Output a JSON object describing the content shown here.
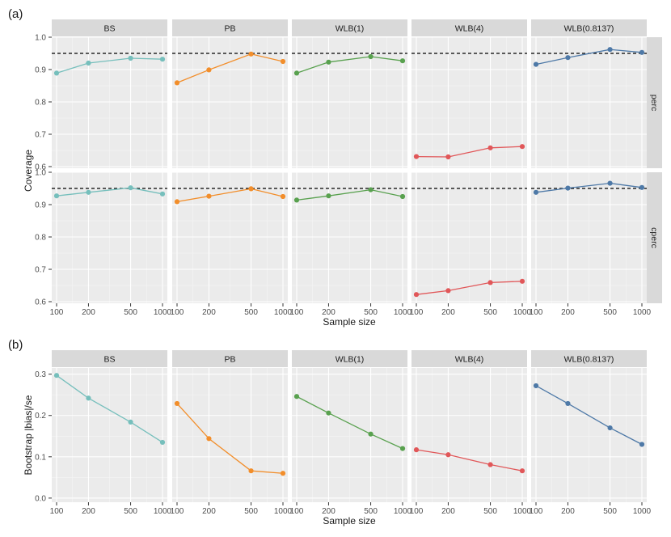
{
  "colors": {
    "panel_bg": "#EBEBEB",
    "strip_bg": "#D9D9D9",
    "grid_major": "#FFFFFF",
    "grid_minor": "#F5F5F5",
    "text": "#1A1A1A",
    "tick_text": "#4D4D4D",
    "BS": "#76BFBC",
    "PB": "#F28E2B",
    "WLB(1)": "#59A14F",
    "WLB(4)": "#E15759",
    "WLB(0.8137)": "#4E79A7"
  },
  "chart_data": [
    {
      "label": "(a)",
      "type": "line",
      "facet_columns": [
        "BS",
        "PB",
        "WLB(1)",
        "WLB(4)",
        "WLB(0.8137)"
      ],
      "facet_rows": [
        "perc",
        "cperc"
      ],
      "x": [
        100,
        200,
        500,
        1000
      ],
      "x_tick_labels": [
        "100",
        "200",
        "500",
        "1000"
      ],
      "x_scale": "log10",
      "xlabel": "Sample size",
      "ylabel": "Coverage",
      "ylim": [
        0.595,
        1.0
      ],
      "y_ticks": [
        0.6,
        0.7,
        0.8,
        0.9,
        1.0
      ],
      "y_tick_labels": [
        "0.6",
        "0.7",
        "0.8",
        "0.9",
        "1.0"
      ],
      "reference_line": {
        "y": 0.95,
        "style": "dashed"
      },
      "series": {
        "perc": {
          "BS": [
            0.889,
            0.92,
            0.935,
            0.932
          ],
          "PB": [
            0.859,
            0.899,
            0.948,
            0.925
          ],
          "WLB(1)": [
            0.889,
            0.923,
            0.94,
            0.927
          ],
          "WLB(4)": [
            0.631,
            0.63,
            0.658,
            0.662
          ],
          "WLB(0.8137)": [
            0.916,
            0.937,
            0.962,
            0.953
          ]
        },
        "cperc": {
          "BS": [
            0.927,
            0.938,
            0.952,
            0.933
          ],
          "PB": [
            0.909,
            0.926,
            0.949,
            0.925
          ],
          "WLB(1)": [
            0.914,
            0.927,
            0.946,
            0.925
          ],
          "WLB(4)": [
            0.622,
            0.634,
            0.659,
            0.663
          ],
          "WLB(0.8137)": [
            0.938,
            0.951,
            0.966,
            0.953
          ]
        }
      }
    },
    {
      "label": "(b)",
      "type": "line",
      "facet_columns": [
        "BS",
        "PB",
        "WLB(1)",
        "WLB(4)",
        "WLB(0.8137)"
      ],
      "x": [
        100,
        200,
        500,
        1000
      ],
      "x_tick_labels": [
        "100",
        "200",
        "500",
        "1000"
      ],
      "x_scale": "log10",
      "xlabel": "Sample size",
      "ylabel": "Bootstrap |bias|/se",
      "ylim": [
        -0.01,
        0.315
      ],
      "y_ticks": [
        0.0,
        0.1,
        0.2,
        0.3
      ],
      "y_tick_labels": [
        "0.0",
        "0.1",
        "0.2",
        "0.3"
      ],
      "series": {
        "BS": [
          0.297,
          0.242,
          0.184,
          0.135
        ],
        "PB": [
          0.229,
          0.144,
          0.066,
          0.06
        ],
        "WLB(1)": [
          0.246,
          0.206,
          0.155,
          0.12
        ],
        "WLB(4)": [
          0.117,
          0.105,
          0.081,
          0.066
        ],
        "WLB(0.8137)": [
          0.272,
          0.229,
          0.17,
          0.13
        ]
      }
    }
  ]
}
